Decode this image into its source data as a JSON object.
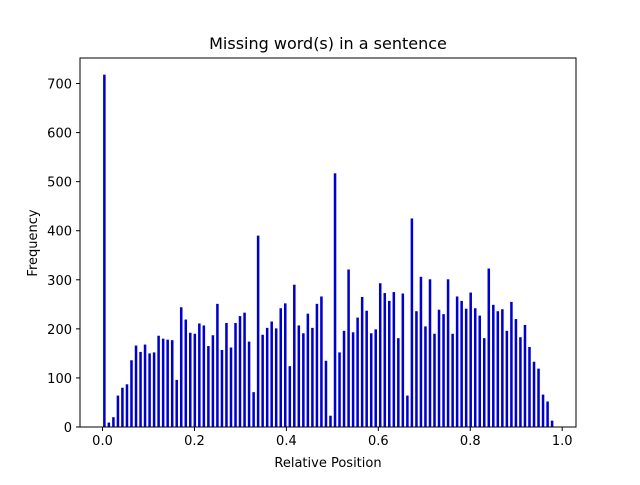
{
  "chart_data": {
    "type": "bar",
    "title": "Missing word(s) in a sentence",
    "xlabel": "Relative Position",
    "ylabel": "Frequency",
    "xlim": [
      -0.049,
      1.03
    ],
    "ylim": [
      0,
      752
    ],
    "xticks": [
      0.0,
      0.2,
      0.4,
      0.6,
      0.8,
      1.0
    ],
    "xtick_labels": [
      "0.0",
      "0.2",
      "0.4",
      "0.6",
      "0.8",
      "1.0"
    ],
    "yticks": [
      0,
      100,
      200,
      300,
      400,
      500,
      600,
      700
    ],
    "ytick_labels": [
      "0",
      "100",
      "200",
      "300",
      "400",
      "500",
      "600",
      "700"
    ],
    "bar_color": "#0000cc",
    "bar_width": 0.0055,
    "x": [
      0.004,
      0.0138,
      0.0237,
      0.0335,
      0.0433,
      0.0532,
      0.063,
      0.0729,
      0.0827,
      0.0925,
      0.1024,
      0.1122,
      0.122,
      0.1319,
      0.1417,
      0.1516,
      0.1614,
      0.1712,
      0.1811,
      0.1909,
      0.2008,
      0.2106,
      0.2204,
      0.2303,
      0.2401,
      0.2499,
      0.2598,
      0.2696,
      0.2795,
      0.2893,
      0.2991,
      0.309,
      0.3188,
      0.3287,
      0.3385,
      0.3483,
      0.3582,
      0.368,
      0.3778,
      0.3877,
      0.3975,
      0.4074,
      0.4172,
      0.427,
      0.4369,
      0.4467,
      0.4566,
      0.4664,
      0.4762,
      0.4861,
      0.4959,
      0.5058,
      0.5156,
      0.5254,
      0.5353,
      0.5451,
      0.5549,
      0.5648,
      0.5746,
      0.5845,
      0.5943,
      0.6041,
      0.614,
      0.6238,
      0.6337,
      0.6435,
      0.6533,
      0.6632,
      0.673,
      0.6829,
      0.6927,
      0.7025,
      0.7124,
      0.7222,
      0.732,
      0.7419,
      0.7517,
      0.7616,
      0.7714,
      0.7812,
      0.7911,
      0.8009,
      0.8108,
      0.8206,
      0.8304,
      0.8403,
      0.8501,
      0.8599,
      0.8698,
      0.8796,
      0.8895,
      0.8993,
      0.9091,
      0.919,
      0.9288,
      0.9387,
      0.9485,
      0.9583,
      0.9682,
      0.978
    ],
    "values": [
      718,
      9,
      20,
      64,
      80,
      87,
      136,
      166,
      153,
      168,
      150,
      152,
      186,
      180,
      178,
      177,
      96,
      244,
      219,
      192,
      190,
      211,
      207,
      165,
      187,
      251,
      157,
      212,
      162,
      212,
      226,
      233,
      174,
      71,
      390,
      188,
      202,
      215,
      201,
      242,
      252,
      124,
      290,
      207,
      191,
      231,
      202,
      251,
      266,
      135,
      23,
      517,
      152,
      196,
      321,
      193,
      223,
      265,
      237,
      191,
      199,
      293,
      273,
      257,
      275,
      181,
      272,
      64,
      425,
      236,
      306,
      205,
      301,
      190,
      239,
      230,
      301,
      190,
      266,
      257,
      241,
      274,
      242,
      227,
      181,
      323,
      249,
      236,
      240,
      196,
      255,
      220,
      183,
      208,
      163,
      133,
      119,
      66,
      52,
      13
    ]
  }
}
